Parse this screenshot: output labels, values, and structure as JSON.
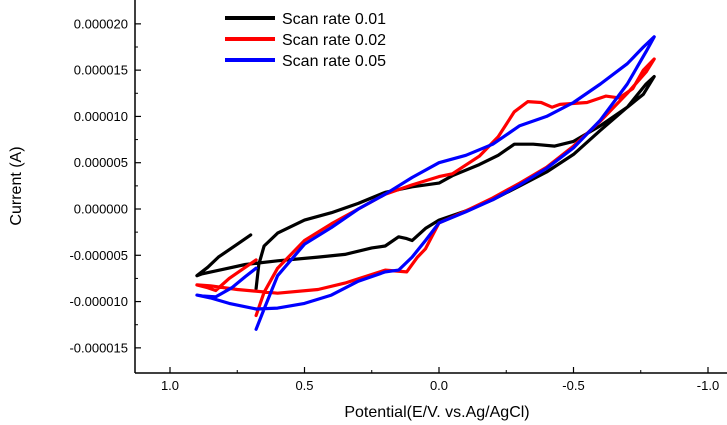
{
  "chart_data": {
    "type": "line",
    "title": "",
    "xlabel": "Potential(E/V. vs.Ag/AgCl)",
    "ylabel": "Current (A)",
    "xlim": [
      1.0,
      -1.0
    ],
    "ylim": [
      -1.8e-05,
      2.2e-05
    ],
    "x_reversed": true,
    "grid": false,
    "legend_position": "top-left",
    "xticks": [
      1.0,
      0.5,
      0.0,
      -0.5,
      -1.0
    ],
    "xtick_labels": [
      "1.0",
      "0.5",
      "0.0",
      "-0.5",
      "-1.0"
    ],
    "yticks": [
      -1.5e-05,
      -1e-05,
      -5e-06,
      0,
      5e-06,
      1e-05,
      1.5e-05,
      2e-05
    ],
    "ytick_labels": [
      "-0.000015",
      "-0.000010",
      "-0.000005",
      "0.000000",
      "0.000005",
      "0.000010",
      "0.000015",
      "0.000020"
    ],
    "series": [
      {
        "name": "Scan rate 0.01",
        "color": "#000000",
        "points": [
          [
            0.7,
            -2.8e-06
          ],
          [
            0.75,
            -3.8e-06
          ],
          [
            0.82,
            -5.2e-06
          ],
          [
            0.86,
            -6.3e-06
          ],
          [
            0.9,
            -7.2e-06
          ],
          [
            0.88,
            -7e-06
          ],
          [
            0.8,
            -6.5e-06
          ],
          [
            0.72,
            -6e-06
          ],
          [
            0.6,
            -5.6e-06
          ],
          [
            0.45,
            -5.2e-06
          ],
          [
            0.35,
            -4.9e-06
          ],
          [
            0.25,
            -4.2e-06
          ],
          [
            0.2,
            -4e-06
          ],
          [
            0.15,
            -3e-06
          ],
          [
            0.12,
            -3.2e-06
          ],
          [
            0.1,
            -3.4e-06
          ],
          [
            0.05,
            -2.1e-06
          ],
          [
            0.0,
            -1.2e-06
          ],
          [
            -0.1,
            -2e-07
          ],
          [
            -0.2,
            1e-06
          ],
          [
            -0.3,
            2.5e-06
          ],
          [
            -0.4,
            4e-06
          ],
          [
            -0.5,
            5.9e-06
          ],
          [
            -0.6,
            8.5e-06
          ],
          [
            -0.7,
            1.1e-05
          ],
          [
            -0.77,
            1.35e-05
          ],
          [
            -0.8,
            1.43e-05
          ],
          [
            -0.76,
            1.24e-05
          ],
          [
            -0.7,
            1.1e-05
          ],
          [
            -0.6,
            9e-06
          ],
          [
            -0.5,
            7.3e-06
          ],
          [
            -0.43,
            6.8e-06
          ],
          [
            -0.35,
            7e-06
          ],
          [
            -0.28,
            7e-06
          ],
          [
            -0.22,
            5.8e-06
          ],
          [
            -0.15,
            4.8e-06
          ],
          [
            -0.05,
            3.6e-06
          ],
          [
            0.0,
            2.8e-06
          ],
          [
            0.1,
            2.4e-06
          ],
          [
            0.2,
            1.8e-06
          ],
          [
            0.3,
            6e-07
          ],
          [
            0.4,
            -4e-07
          ],
          [
            0.5,
            -1.2e-06
          ],
          [
            0.6,
            -2.6e-06
          ],
          [
            0.65,
            -4e-06
          ],
          [
            0.67,
            -6e-06
          ],
          [
            0.68,
            -8.6e-06
          ]
        ]
      },
      {
        "name": "Scan rate 0.02",
        "color": "#ff0000",
        "points": [
          [
            0.68,
            -5.5e-06
          ],
          [
            0.72,
            -6.3e-06
          ],
          [
            0.78,
            -7.5e-06
          ],
          [
            0.83,
            -8.8e-06
          ],
          [
            0.86,
            -8.5e-06
          ],
          [
            0.9,
            -8.2e-06
          ],
          [
            0.85,
            -8.3e-06
          ],
          [
            0.75,
            -8.7e-06
          ],
          [
            0.6,
            -9.1e-06
          ],
          [
            0.45,
            -8.7e-06
          ],
          [
            0.35,
            -8e-06
          ],
          [
            0.2,
            -6.6e-06
          ],
          [
            0.12,
            -6.8e-06
          ],
          [
            0.08,
            -5.2e-06
          ],
          [
            0.05,
            -4.3e-06
          ],
          [
            0.0,
            -1.5e-06
          ],
          [
            -0.1,
            -2e-07
          ],
          [
            -0.2,
            1.2e-06
          ],
          [
            -0.3,
            2.8e-06
          ],
          [
            -0.4,
            4.5e-06
          ],
          [
            -0.5,
            6.8e-06
          ],
          [
            -0.6,
            9.5e-06
          ],
          [
            -0.7,
            1.25e-05
          ],
          [
            -0.77,
            1.48e-05
          ],
          [
            -0.8,
            1.62e-05
          ],
          [
            -0.76,
            1.5e-05
          ],
          [
            -0.72,
            1.3e-05
          ],
          [
            -0.67,
            1.2e-05
          ],
          [
            -0.62,
            1.22e-05
          ],
          [
            -0.55,
            1.15e-05
          ],
          [
            -0.45,
            1.13e-05
          ],
          [
            -0.42,
            1.1e-05
          ],
          [
            -0.38,
            1.15e-05
          ],
          [
            -0.33,
            1.16e-05
          ],
          [
            -0.28,
            1.05e-05
          ],
          [
            -0.22,
            7.8e-06
          ],
          [
            -0.15,
            5.7e-06
          ],
          [
            -0.05,
            3.8e-06
          ],
          [
            0.0,
            3.5e-06
          ],
          [
            0.1,
            2.6e-06
          ],
          [
            0.2,
            1.6e-06
          ],
          [
            0.3,
            0.0
          ],
          [
            0.4,
            -1.6e-06
          ],
          [
            0.5,
            -3.4e-06
          ],
          [
            0.6,
            -6.4e-06
          ],
          [
            0.65,
            -9e-06
          ],
          [
            0.68,
            -1.15e-05
          ]
        ]
      },
      {
        "name": "Scan rate 0.05",
        "color": "#0000ff",
        "points": [
          [
            0.68,
            -6.4e-06
          ],
          [
            0.72,
            -7.3e-06
          ],
          [
            0.77,
            -8.5e-06
          ],
          [
            0.83,
            -9.5e-06
          ],
          [
            0.88,
            -9.4e-06
          ],
          [
            0.9,
            -9.3e-06
          ],
          [
            0.85,
            -9.6e-06
          ],
          [
            0.78,
            -1.02e-05
          ],
          [
            0.68,
            -1.08e-05
          ],
          [
            0.6,
            -1.07e-05
          ],
          [
            0.5,
            -1.02e-05
          ],
          [
            0.4,
            -9.3e-06
          ],
          [
            0.3,
            -7.8e-06
          ],
          [
            0.2,
            -6.8e-06
          ],
          [
            0.15,
            -6.6e-06
          ],
          [
            0.1,
            -5.2e-06
          ],
          [
            0.05,
            -3.4e-06
          ],
          [
            0.0,
            -1.5e-06
          ],
          [
            -0.1,
            -3e-07
          ],
          [
            -0.2,
            1e-06
          ],
          [
            -0.3,
            2.6e-06
          ],
          [
            -0.4,
            4.4e-06
          ],
          [
            -0.5,
            6.6e-06
          ],
          [
            -0.6,
            9.6e-06
          ],
          [
            -0.7,
            1.35e-05
          ],
          [
            -0.77,
            1.7e-05
          ],
          [
            -0.8,
            1.86e-05
          ],
          [
            -0.76,
            1.75e-05
          ],
          [
            -0.7,
            1.57e-05
          ],
          [
            -0.6,
            1.35e-05
          ],
          [
            -0.5,
            1.15e-05
          ],
          [
            -0.4,
            1e-05
          ],
          [
            -0.3,
            9e-06
          ],
          [
            -0.2,
            7e-06
          ],
          [
            -0.1,
            5.8e-06
          ],
          [
            0.0,
            5e-06
          ],
          [
            0.1,
            3.4e-06
          ],
          [
            0.2,
            1.6e-06
          ],
          [
            0.3,
            0.0
          ],
          [
            0.4,
            -2e-06
          ],
          [
            0.5,
            -3.8e-06
          ],
          [
            0.6,
            -7.2e-06
          ],
          [
            0.65,
            -1.08e-05
          ],
          [
            0.68,
            -1.3e-05
          ]
        ]
      }
    ]
  }
}
